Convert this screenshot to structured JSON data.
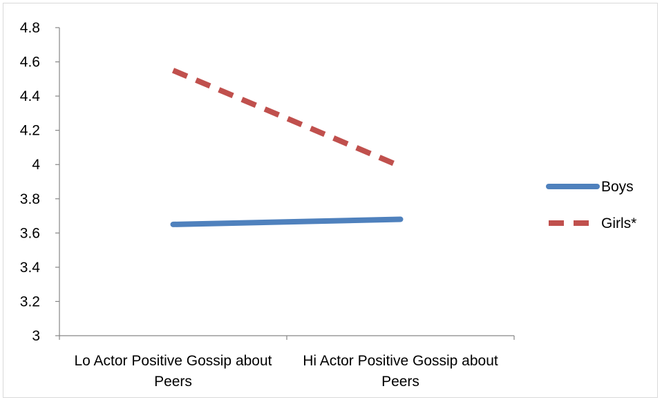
{
  "chart_data": {
    "type": "line",
    "categories": [
      [
        "Lo Actor Positive Gossip about",
        "Peers"
      ],
      [
        "Hi Actor Positive Gossip about",
        "Peers"
      ]
    ],
    "series": [
      {
        "name": "Boys",
        "values": [
          3.65,
          3.68
        ],
        "color": "#4F81BD",
        "style": "solid"
      },
      {
        "name": "Girls*",
        "values": [
          4.55,
          3.99
        ],
        "color": "#C0504D",
        "style": "dashed"
      }
    ],
    "y_ticks": [
      "3",
      "3.2",
      "3.4",
      "3.6",
      "3.8",
      "4",
      "4.2",
      "4.4",
      "4.6",
      "4.8"
    ],
    "ylim": [
      3,
      4.8
    ],
    "title": "",
    "xlabel": "",
    "ylabel": "",
    "grid": false,
    "legend_position": "right"
  }
}
